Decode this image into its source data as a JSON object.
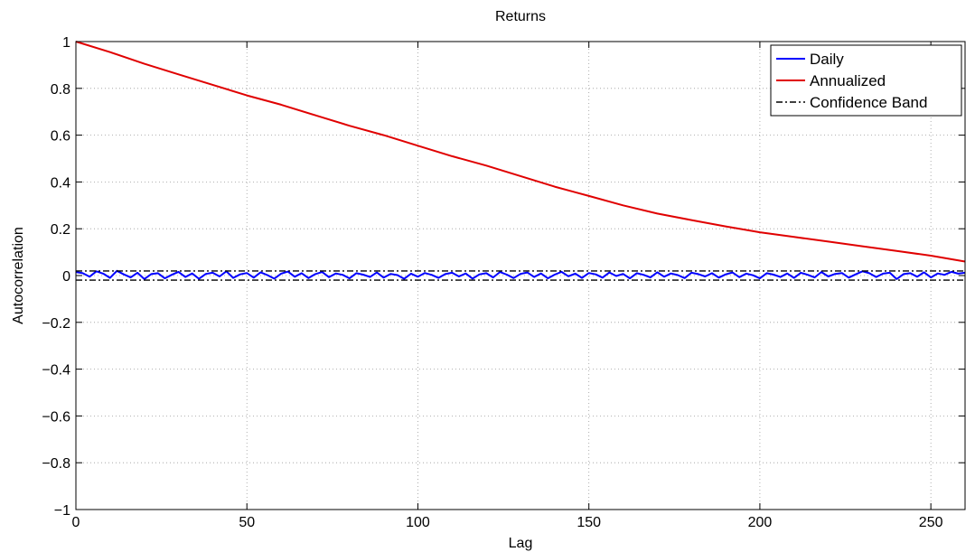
{
  "chart_data": {
    "type": "line",
    "title": "Returns",
    "xlabel": "Lag",
    "ylabel": "Autocorrelation",
    "xlim": [
      0,
      260
    ],
    "ylim": [
      -1,
      1
    ],
    "xticks": [
      0,
      50,
      100,
      150,
      200,
      250
    ],
    "xtick_labels": [
      "0",
      "50",
      "100",
      "150",
      "200",
      "250"
    ],
    "yticks": [
      -1,
      -0.8,
      -0.6,
      -0.4,
      -0.2,
      0,
      0.2,
      0.4,
      0.6,
      0.8,
      1
    ],
    "ytick_labels": [
      "−1",
      "−0.8",
      "−0.6",
      "−0.4",
      "−0.2",
      "0",
      "0.2",
      "0.4",
      "0.6",
      "0.8",
      "1"
    ],
    "grid": true,
    "legend_position": "top-right",
    "series": [
      {
        "name": "Daily",
        "color": "#0000ff",
        "style": "solid",
        "x": [
          0,
          2,
          4,
          6,
          8,
          10,
          12,
          14,
          16,
          18,
          20,
          22,
          24,
          26,
          28,
          30,
          32,
          34,
          36,
          38,
          40,
          42,
          44,
          46,
          48,
          50,
          52,
          54,
          56,
          58,
          60,
          62,
          64,
          66,
          68,
          70,
          72,
          74,
          76,
          78,
          80,
          82,
          84,
          86,
          88,
          90,
          92,
          94,
          96,
          98,
          100,
          102,
          104,
          106,
          108,
          110,
          112,
          114,
          116,
          118,
          120,
          122,
          124,
          126,
          128,
          130,
          132,
          134,
          136,
          138,
          140,
          142,
          144,
          146,
          148,
          150,
          152,
          154,
          156,
          158,
          160,
          162,
          164,
          166,
          168,
          170,
          172,
          174,
          176,
          178,
          180,
          182,
          184,
          186,
          188,
          190,
          192,
          194,
          196,
          198,
          200,
          202,
          204,
          206,
          208,
          210,
          212,
          214,
          216,
          218,
          220,
          222,
          224,
          226,
          228,
          230,
          232,
          234,
          236,
          238,
          240,
          242,
          244,
          246,
          248,
          250,
          252,
          254,
          256,
          258,
          260
        ],
        "y": [
          0.015,
          0.01,
          -0.005,
          0.018,
          0.008,
          -0.01,
          0.02,
          0.005,
          -0.008,
          0.012,
          -0.015,
          0.006,
          0.01,
          -0.012,
          0.003,
          0.016,
          -0.006,
          0.009,
          -0.014,
          0.007,
          0.012,
          -0.004,
          0.018,
          -0.01,
          0.005,
          0.011,
          -0.009,
          0.014,
          0.002,
          -0.013,
          0.008,
          0.017,
          -0.005,
          0.01,
          -0.011,
          0.006,
          0.015,
          -0.007,
          0.009,
          0.003,
          -0.012,
          0.01,
          0.004,
          -0.006,
          0.013,
          -0.009,
          0.007,
          0.002,
          -0.014,
          0.008,
          -0.005,
          0.011,
          0.003,
          -0.01,
          0.006,
          0.012,
          -0.004,
          0.009,
          -0.013,
          0.005,
          0.01,
          -0.008,
          0.015,
          0.004,
          -0.011,
          0.007,
          0.013,
          -0.006,
          0.009,
          -0.012,
          0.004,
          0.016,
          -0.003,
          0.008,
          -0.01,
          0.011,
          0.005,
          -0.009,
          0.013,
          -0.002,
          0.007,
          -0.012,
          0.01,
          0.003,
          -0.008,
          0.014,
          -0.005,
          0.009,
          0.002,
          -0.011,
          0.012,
          0.006,
          -0.004,
          0.01,
          -0.009,
          0.005,
          0.013,
          -0.007,
          0.008,
          0.001,
          -0.012,
          0.01,
          0.004,
          -0.006,
          0.009,
          -0.01,
          0.012,
          0.003,
          -0.008,
          0.015,
          -0.004,
          0.007,
          0.011,
          -0.009,
          0.005,
          0.018,
          0.01,
          -0.006,
          0.008,
          0.012,
          -0.015,
          0.006,
          0.01,
          -0.005,
          0.014,
          -0.008,
          0.009,
          0.003,
          0.016,
          0.008,
          0.012
        ]
      },
      {
        "name": "Annualized",
        "color": "#e00000",
        "style": "solid",
        "x": [
          0,
          10,
          20,
          30,
          40,
          50,
          60,
          70,
          80,
          90,
          100,
          110,
          120,
          130,
          140,
          150,
          160,
          170,
          180,
          190,
          200,
          210,
          220,
          230,
          240,
          250,
          260
        ],
        "y": [
          1.0,
          0.955,
          0.905,
          0.86,
          0.815,
          0.77,
          0.73,
          0.685,
          0.64,
          0.6,
          0.555,
          0.51,
          0.47,
          0.425,
          0.38,
          0.34,
          0.3,
          0.265,
          0.237,
          0.21,
          0.185,
          0.165,
          0.145,
          0.125,
          0.105,
          0.085,
          0.06
        ]
      },
      {
        "name": "Confidence Band",
        "color": "#000000",
        "style": "dashdot",
        "upper": 0.0195,
        "lower": -0.0195
      }
    ]
  }
}
